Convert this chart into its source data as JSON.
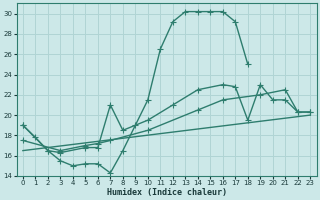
{
  "xlabel": "Humidex (Indice chaleur)",
  "background_color": "#cce8e8",
  "grid_color": "#b0d4d4",
  "line_color": "#2e7d6e",
  "xlim": [
    -0.5,
    23.5
  ],
  "ylim": [
    14,
    31
  ],
  "xticks": [
    0,
    1,
    2,
    3,
    4,
    5,
    6,
    7,
    8,
    9,
    10,
    11,
    12,
    13,
    14,
    15,
    16,
    17,
    18,
    19,
    20,
    21,
    22,
    23
  ],
  "yticks": [
    14,
    16,
    18,
    20,
    22,
    24,
    26,
    28,
    30
  ],
  "line1_x": [
    0,
    1,
    2,
    3,
    4,
    5,
    6,
    7,
    8,
    9,
    10,
    11,
    12,
    13,
    14,
    15,
    16,
    17,
    18
  ],
  "line1_y": [
    19.0,
    17.8,
    16.5,
    15.5,
    15.0,
    15.2,
    15.2,
    14.3,
    16.5,
    19.0,
    21.5,
    26.5,
    29.2,
    30.2,
    30.2,
    30.2,
    30.2,
    29.2,
    25.0
  ],
  "line2_x": [
    0,
    2,
    3,
    5,
    6,
    7,
    8,
    10,
    12,
    14,
    16,
    17,
    18,
    19,
    20,
    21,
    22,
    23
  ],
  "line2_y": [
    19.0,
    16.5,
    16.3,
    16.8,
    16.8,
    21.0,
    18.5,
    19.5,
    21.0,
    22.5,
    23.0,
    22.8,
    19.5,
    23.0,
    21.5,
    21.5,
    20.3,
    20.3
  ],
  "line3_x": [
    0,
    3,
    5,
    6,
    7,
    10,
    14,
    16,
    19,
    21,
    22,
    23
  ],
  "line3_y": [
    17.5,
    16.5,
    17.0,
    17.2,
    17.5,
    18.5,
    20.5,
    21.5,
    22.0,
    22.5,
    20.3,
    20.3
  ],
  "line4_x": [
    0,
    23
  ],
  "line4_y": [
    16.5,
    20.0
  ],
  "marker_size": 2.5,
  "linewidth": 1.0
}
